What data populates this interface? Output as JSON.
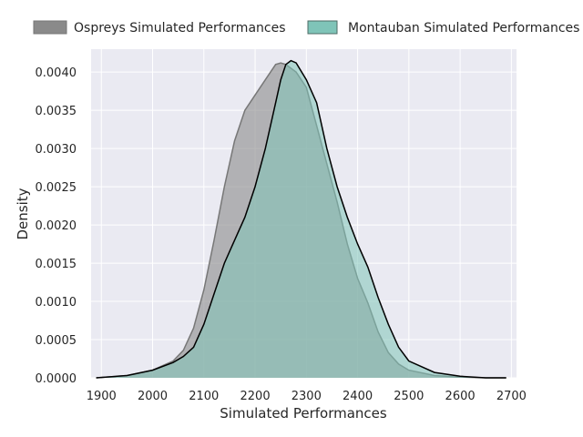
{
  "chart_data": {
    "type": "area",
    "title": "",
    "xlabel": "Simulated Performances",
    "ylabel": "Density",
    "xlim": [
      1880,
      2710
    ],
    "ylim": [
      0,
      0.0043
    ],
    "xticks": [
      1900,
      2000,
      2100,
      2200,
      2300,
      2400,
      2500,
      2600,
      2700
    ],
    "yticks": [
      0.0,
      0.0005,
      0.001,
      0.0015,
      0.002,
      0.0025,
      0.003,
      0.0035,
      0.004
    ],
    "ytick_labels": [
      "0.0000",
      "0.0005",
      "0.0010",
      "0.0015",
      "0.0020",
      "0.0025",
      "0.0030",
      "0.0035",
      "0.0040"
    ],
    "grid": true,
    "legend_position": "top",
    "series": [
      {
        "name": "Ospreys Simulated Performances",
        "fill_color": "#8a8a8a",
        "line_color": "#777777",
        "x": [
          1890,
          1950,
          2000,
          2040,
          2060,
          2080,
          2100,
          2120,
          2140,
          2160,
          2180,
          2200,
          2220,
          2240,
          2250,
          2260,
          2270,
          2280,
          2300,
          2320,
          2340,
          2360,
          2380,
          2400,
          2420,
          2440,
          2460,
          2480,
          2500,
          2550,
          2600,
          2650,
          2690
        ],
        "y": [
          0.0,
          3e-05,
          0.0001,
          0.00022,
          0.00036,
          0.00065,
          0.00115,
          0.0018,
          0.0025,
          0.0031,
          0.0035,
          0.0037,
          0.0039,
          0.0041,
          0.00412,
          0.0041,
          0.00405,
          0.004,
          0.0038,
          0.0033,
          0.0028,
          0.0023,
          0.00175,
          0.0013,
          0.00098,
          0.0006,
          0.00033,
          0.00018,
          0.0001,
          3e-05,
          1e-05,
          0.0,
          0.0
        ]
      },
      {
        "name": "Montauban Simulated Performances",
        "fill_color": "#7fc4b8",
        "line_color": "#000000",
        "x": [
          1890,
          1950,
          2000,
          2040,
          2060,
          2080,
          2100,
          2120,
          2140,
          2160,
          2180,
          2200,
          2220,
          2240,
          2250,
          2260,
          2270,
          2280,
          2300,
          2320,
          2340,
          2360,
          2380,
          2400,
          2420,
          2440,
          2460,
          2480,
          2500,
          2550,
          2600,
          2650,
          2690
        ],
        "y": [
          0.0,
          3e-05,
          0.0001,
          0.0002,
          0.00028,
          0.0004,
          0.0007,
          0.0011,
          0.0015,
          0.0018,
          0.0021,
          0.0025,
          0.003,
          0.0036,
          0.0039,
          0.0041,
          0.00415,
          0.00412,
          0.0039,
          0.0036,
          0.003,
          0.0025,
          0.0021,
          0.00175,
          0.00145,
          0.00105,
          0.0007,
          0.0004,
          0.00022,
          7e-05,
          2e-05,
          0.0,
          0.0
        ]
      }
    ]
  }
}
